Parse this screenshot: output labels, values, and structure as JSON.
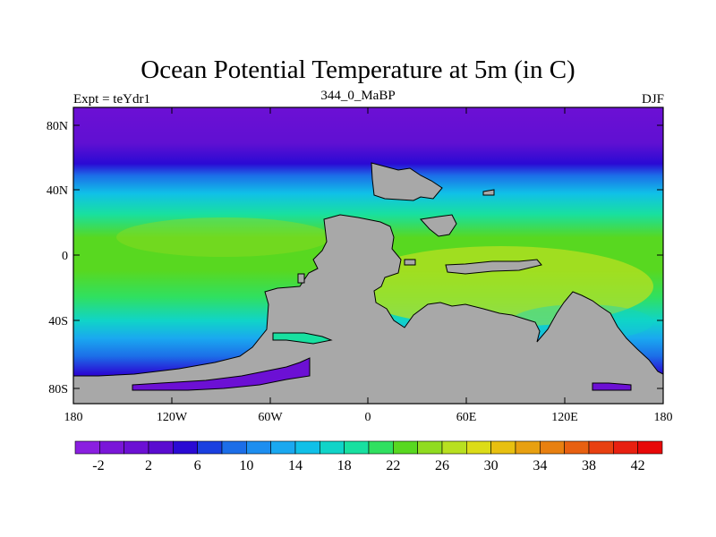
{
  "title": "Ocean Potential Temperature at 5m (in C)",
  "left_label": "Expt = teYdr1",
  "center_label": "344_0_MaBP",
  "right_label": "DJF",
  "lat_ticks": [
    "80N",
    "40N",
    "0",
    "40S",
    "80S"
  ],
  "lon_ticks": [
    "180",
    "120W",
    "60W",
    "0",
    "60E",
    "120E",
    "180"
  ],
  "colorbar": {
    "labels": [
      "-2",
      "2",
      "6",
      "10",
      "14",
      "18",
      "22",
      "26",
      "30",
      "34",
      "38",
      "42"
    ],
    "colors": [
      "#8a1fe0",
      "#7a16d8",
      "#6c10d4",
      "#5a0cd0",
      "#2a0ad4",
      "#1a3fe0",
      "#1c6ee8",
      "#1d8ef0",
      "#1aa8f0",
      "#10c0e8",
      "#10d4c8",
      "#18e0a0",
      "#30e060",
      "#58d820",
      "#90dc20",
      "#b8e020",
      "#dcdc18",
      "#e8c010",
      "#e8a010",
      "#e88010",
      "#e86010",
      "#e84010",
      "#e82010",
      "#e80808"
    ]
  },
  "colors": {
    "land": "#a8a8a8",
    "coast": "#000000"
  }
}
